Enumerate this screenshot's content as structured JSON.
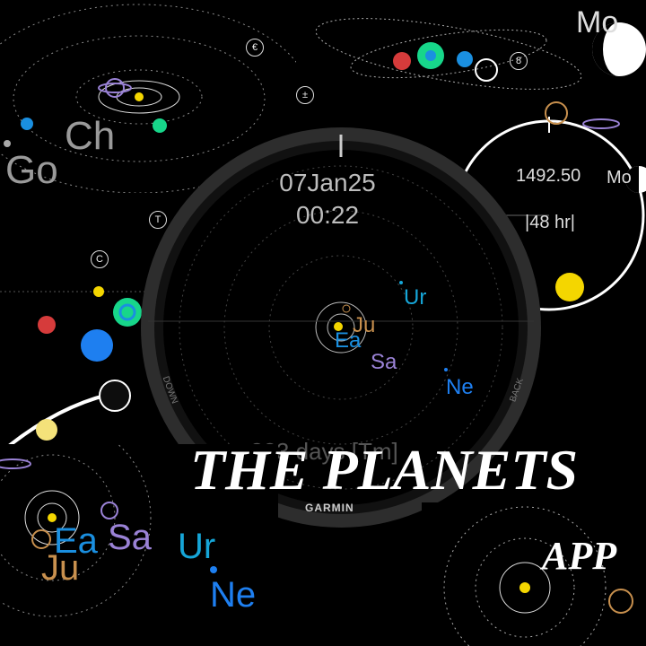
{
  "tiles": {
    "top_left": {
      "labels": [
        "Ch",
        "Go"
      ]
    },
    "top_right": {
      "labels": [
        "Mo"
      ]
    },
    "right_clock": {
      "value": "1492.50",
      "hours": "|48 hr|",
      "moon_label": "Mo"
    },
    "center_watch": {
      "date": "07Jan25",
      "time": "00:22",
      "planet_labels": [
        "Ur",
        "Ju",
        "Ea",
        "Sa",
        "Ne"
      ],
      "brand": "GARMIN",
      "bezel_left": "DOWN",
      "bezel_right": "BACK",
      "bottom_partial": "333 days [Tm]"
    },
    "bottom_left": {
      "labels": [
        "Ea",
        "Sa",
        "Ur",
        "Ju",
        "Ne"
      ]
    }
  },
  "promo": {
    "title": "THE PLANETS",
    "subtitle": "APP"
  },
  "colors": {
    "earth": "#1a8fe0",
    "uranus": "#16a6d8",
    "saturn": "#9a82d6",
    "jupiter": "#c8904e",
    "sun": "#f4d600",
    "mars": "#d63b3b",
    "neptune": "#1e7ff0",
    "green_planet": "#17d68a"
  },
  "icons": [
    "pluto-icon",
    "neptune-icon",
    "venus-icon",
    "mars-icon",
    "taurus-icon",
    "euro-symbol-icon",
    "moon-phase-icon"
  ]
}
